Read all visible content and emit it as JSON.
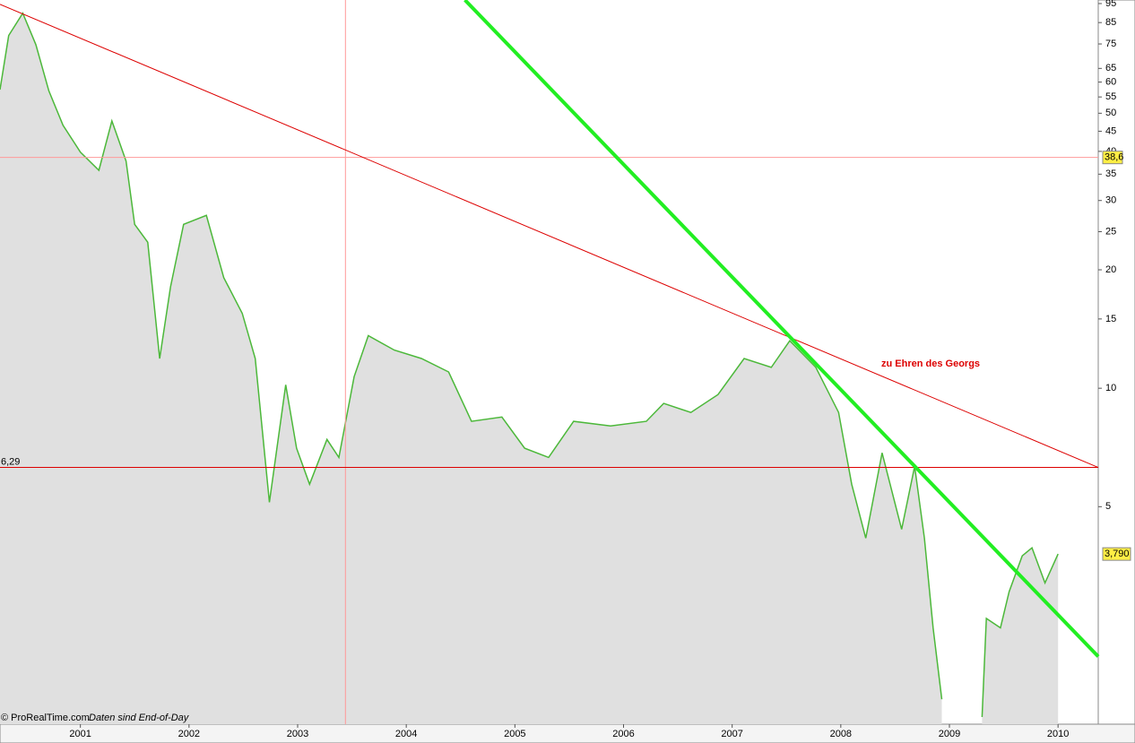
{
  "chart_data": {
    "type": "area",
    "log_scale": true,
    "x": [
      2000.26,
      2000.34,
      2000.47,
      2000.59,
      2000.71,
      2000.84,
      2001.0,
      2001.17,
      2001.29,
      2001.42,
      2001.5,
      2001.62,
      2001.73,
      2001.83,
      2001.95,
      2002.16,
      2002.32,
      2002.49,
      2002.61,
      2002.74,
      2002.89,
      2002.99,
      2003.11,
      2003.27,
      2003.38,
      2003.52,
      2003.65,
      2003.89,
      2004.14,
      2004.39,
      2004.6,
      2004.88,
      2005.09,
      2005.31,
      2005.54,
      2005.88,
      2006.21,
      2006.37,
      2006.62,
      2006.87,
      2007.11,
      2007.36,
      2007.53,
      2007.77,
      2007.98,
      2008.1,
      2008.23,
      2008.38,
      2008.56,
      2008.68,
      2008.77,
      2008.85,
      2008.93,
      2009.1,
      2009.3,
      2009.34,
      2009.47,
      2009.55,
      2009.67,
      2009.76,
      2009.88,
      2010.0
    ],
    "values": [
      57.4,
      78.8,
      89.8,
      74.7,
      57,
      46.6,
      39.8,
      35.8,
      47.8,
      37.8,
      26.1,
      23.5,
      11.9,
      18.1,
      26.1,
      27.5,
      19.1,
      15.5,
      11.9,
      5.13,
      10.2,
      7.04,
      5.7,
      7.41,
      6.67,
      10.7,
      13.6,
      12.5,
      11.9,
      11.0,
      8.24,
      8.45,
      7.04,
      6.67,
      8.24,
      8.02,
      8.24,
      9.15,
      8.68,
      9.64,
      11.9,
      11.3,
      13.2,
      11.3,
      8.68,
      5.7,
      4.16,
      6.85,
      4.38,
      6.33,
      4.16,
      2.46,
      1.62,
      null,
      1.46,
      2.6,
      2.46,
      3.04,
      3.75,
      3.93,
      3.2,
      3.79
    ],
    "color": "#4cb83a",
    "fill": "#e0e0e0",
    "xlim": [
      2000.26,
      2010.37
    ],
    "xticks": [
      2001,
      2002,
      2003,
      2004,
      2005,
      2006,
      2007,
      2008,
      2009,
      2010
    ],
    "ylim": [
      1.4,
      97
    ],
    "yticks": [
      95,
      85,
      75,
      65,
      60,
      55,
      50,
      45,
      40,
      35,
      30,
      25,
      20,
      15,
      10,
      5
    ],
    "hlines": [
      {
        "value": 6.29,
        "label": "6,29",
        "color": "#dd0000"
      },
      {
        "value": 38.6,
        "label": "38,6",
        "color": "#ff9999"
      }
    ],
    "vlines": [
      {
        "value": 2003.44,
        "color": "#ff9999"
      }
    ],
    "last_value": {
      "value": 3.79,
      "label": "3,790"
    },
    "trendlines": [
      {
        "x": [
          2000.26,
          2010.37
        ],
        "y": [
          94.6,
          6.29
        ],
        "color": "#dd0000",
        "width": 1
      },
      {
        "x": [
          2004.54,
          2010.37
        ],
        "y": [
          97,
          2.08
        ],
        "color": "#22ee22",
        "width": 4
      }
    ],
    "annotation": "zu Ehren des Georgs",
    "footer": "© ProRealTime.com",
    "footer_note": "Daten sind End-of-Day"
  }
}
